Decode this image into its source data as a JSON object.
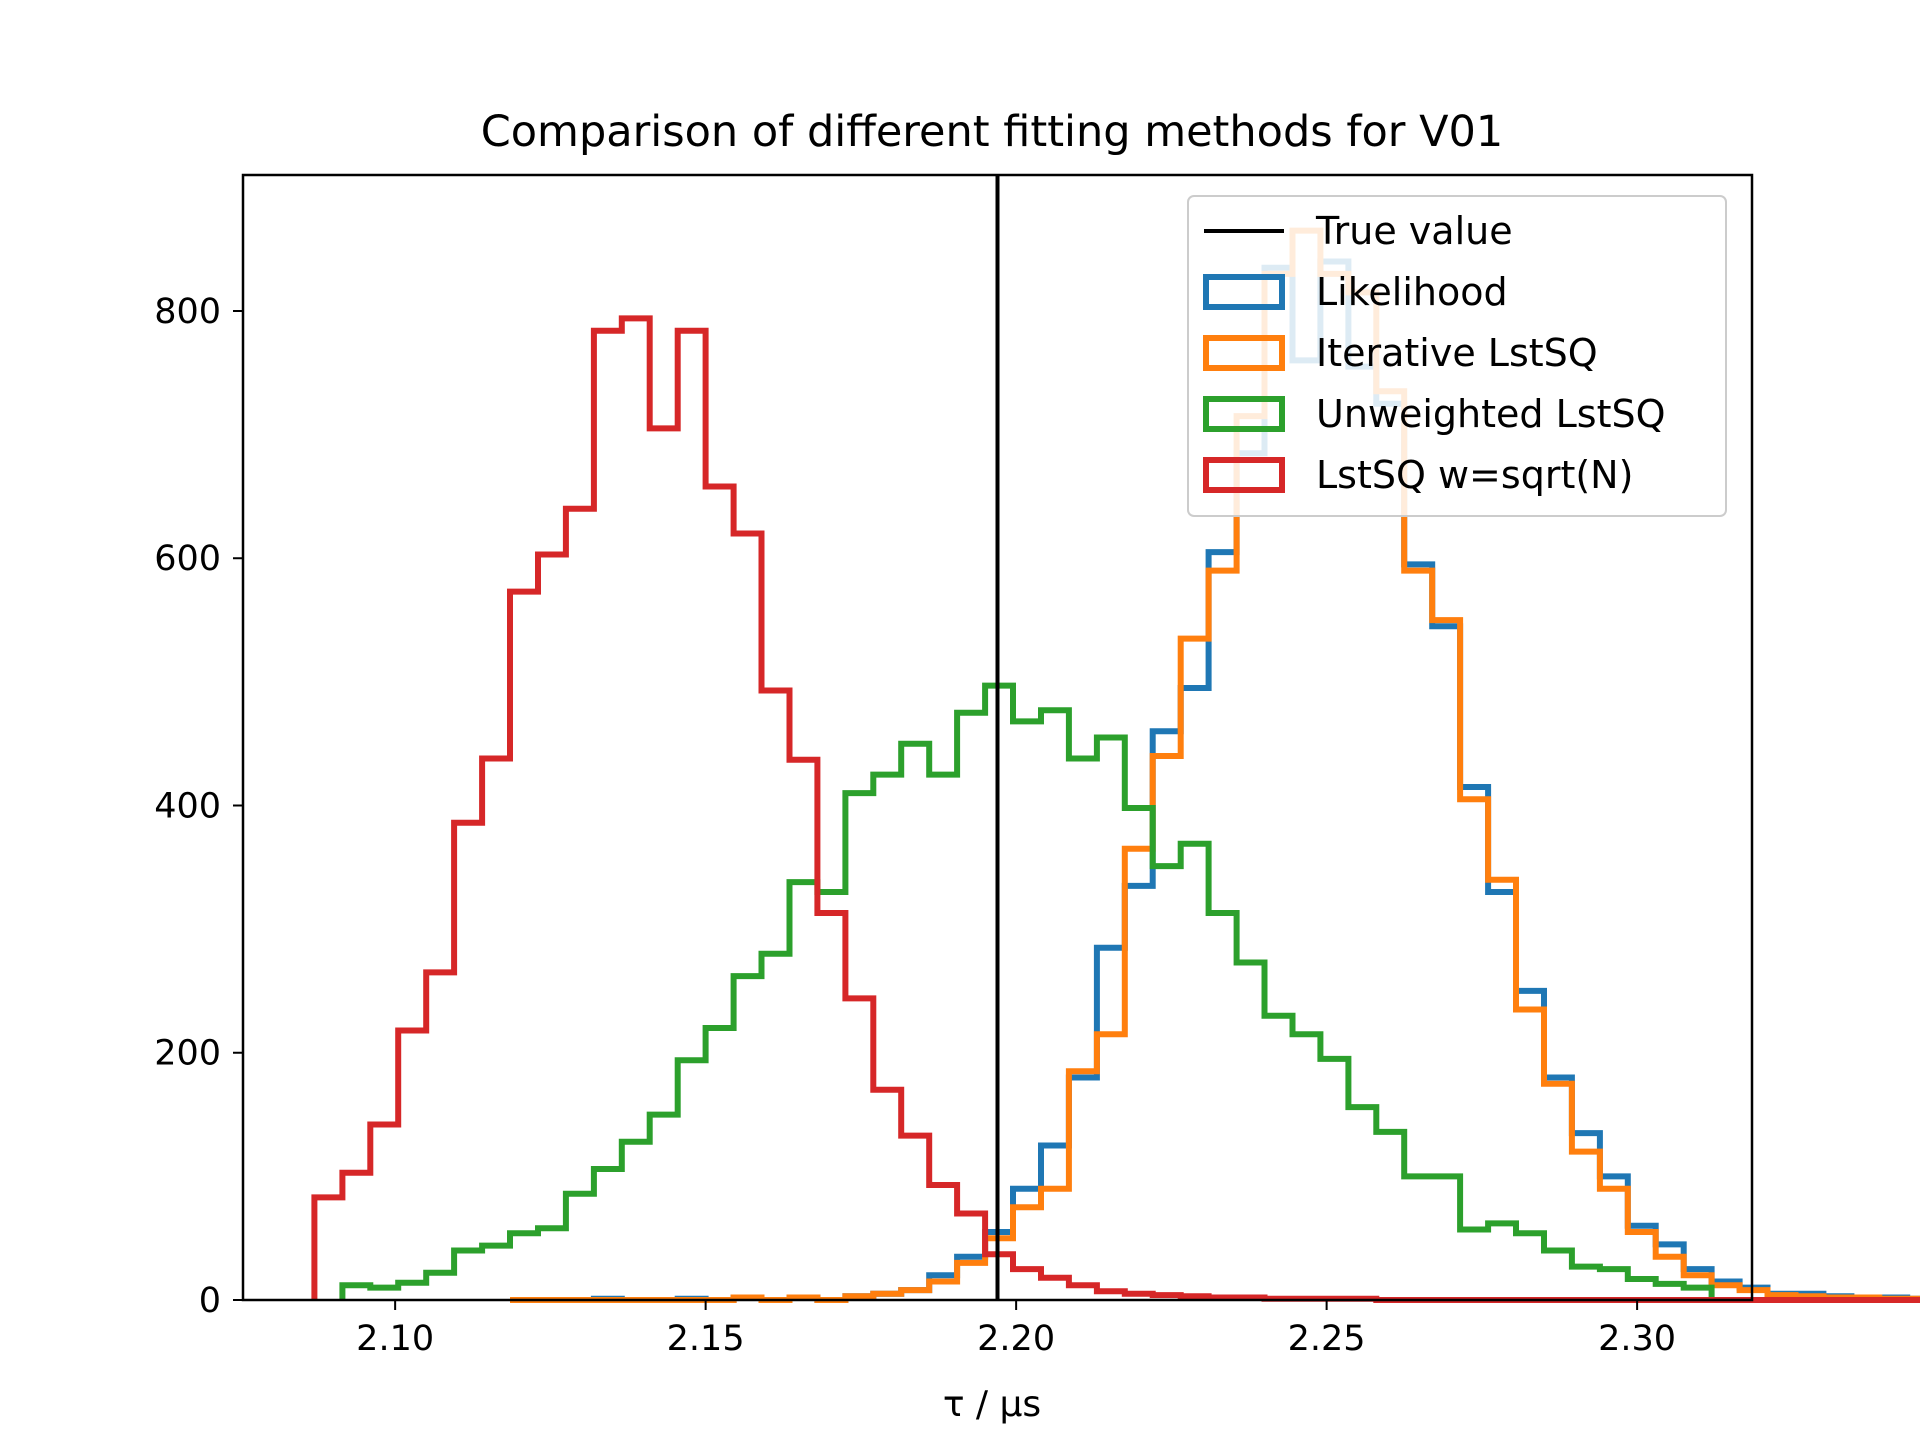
{
  "chart_data": {
    "type": "histogram",
    "title": "Comparison of different fitting methods for V01",
    "xlabel": "τ / µs",
    "ylabel": "",
    "xlim": [
      2.0755,
      2.3185
    ],
    "ylim": [
      0,
      910
    ],
    "xticks": [
      2.1,
      2.15,
      2.2,
      2.25,
      2.3
    ],
    "xtick_labels": [
      "2.10",
      "2.15",
      "2.20",
      "2.25",
      "2.30"
    ],
    "yticks": [
      0,
      200,
      400,
      600,
      800
    ],
    "ytick_labels": [
      "0",
      "200",
      "400",
      "600",
      "800"
    ],
    "grid": false,
    "legend_position": "upper right",
    "bin_start": 2.087,
    "bin_width": 0.0045,
    "true_value": 2.197,
    "series": [
      {
        "name": "Likelihood",
        "color": "#1f77b4",
        "start_bin": 7,
        "values": [
          0,
          0,
          0,
          1,
          0,
          0,
          1,
          0,
          2,
          0,
          2,
          0,
          3,
          5,
          8,
          20,
          35,
          55,
          90,
          125,
          180,
          285,
          335,
          460,
          495,
          605,
          685,
          835,
          760,
          840,
          755,
          725,
          595,
          545,
          415,
          330,
          250,
          180,
          135,
          100,
          60,
          45,
          25,
          15,
          10,
          5,
          5,
          3,
          2,
          2,
          1,
          1,
          0,
          0,
          0
        ]
      },
      {
        "name": "Iterative LstSQ",
        "color": "#ff7f0e",
        "start_bin": 7,
        "values": [
          0,
          0,
          0,
          0,
          0,
          0,
          0,
          0,
          2,
          0,
          2,
          0,
          3,
          5,
          8,
          15,
          30,
          50,
          75,
          90,
          185,
          215,
          365,
          440,
          535,
          590,
          715,
          830,
          865,
          830,
          815,
          735,
          590,
          550,
          405,
          340,
          235,
          175,
          120,
          90,
          55,
          35,
          20,
          12,
          8,
          4,
          3,
          2,
          2,
          1,
          1,
          0,
          0,
          0,
          0
        ]
      },
      {
        "name": "Unweighted LstSQ",
        "color": "#2ca02c",
        "start_bin": 1,
        "values": [
          12,
          10,
          14,
          22,
          40,
          44,
          54,
          58,
          86,
          106,
          128,
          150,
          194,
          220,
          262,
          280,
          338,
          330,
          410,
          425,
          450,
          425,
          475,
          497,
          468,
          477,
          438,
          455,
          398,
          351,
          369,
          313,
          273,
          230,
          215,
          195,
          156,
          136,
          100,
          100,
          57,
          62,
          54,
          40,
          27,
          25,
          17,
          13,
          10
        ]
      },
      {
        "name": "LstSQ w=sqrt(N)",
        "color": "#d62728",
        "start_bin": 0,
        "values": [
          83,
          103,
          142,
          218,
          265,
          386,
          438,
          573,
          603,
          640,
          784,
          794,
          705,
          784,
          658,
          620,
          493,
          437,
          313,
          244,
          170,
          133,
          93,
          70,
          37,
          25,
          18,
          12,
          7,
          5,
          4,
          3,
          2,
          2,
          1,
          1,
          1,
          1,
          0,
          0,
          0,
          0,
          0,
          0,
          0,
          0,
          0,
          0,
          0,
          0,
          0,
          0,
          0,
          0,
          0,
          0,
          0,
          0,
          0,
          0,
          0
        ]
      }
    ],
    "legend": [
      {
        "label": "True value",
        "color": "#000000",
        "kind": "line"
      },
      {
        "label": "Likelihood",
        "color": "#1f77b4",
        "kind": "box"
      },
      {
        "label": "Iterative LstSQ",
        "color": "#ff7f0e",
        "kind": "box"
      },
      {
        "label": "Unweighted LstSQ",
        "color": "#2ca02c",
        "kind": "box"
      },
      {
        "label": "LstSQ w=sqrt(N)",
        "color": "#d62728",
        "kind": "box"
      }
    ]
  }
}
